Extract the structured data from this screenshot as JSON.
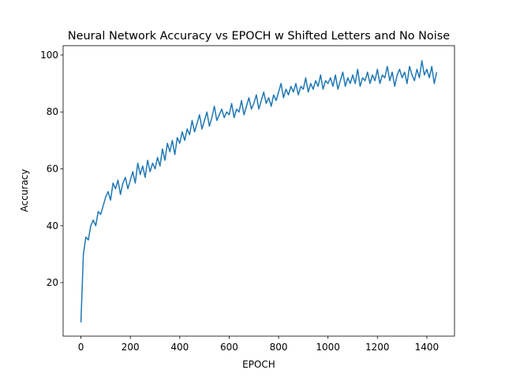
{
  "chart_data": {
    "type": "line",
    "title": "Neural Network Accuracy vs EPOCH w Shifted Letters and No Noise",
    "x_label": "EPOCH",
    "y_label": "Accuracy",
    "color": "#1f77b4",
    "x": [
      0,
      10,
      20,
      30,
      40,
      50,
      60,
      70,
      80,
      90,
      100,
      110,
      120,
      130,
      140,
      150,
      160,
      170,
      180,
      190,
      200,
      210,
      220,
      230,
      240,
      250,
      260,
      270,
      280,
      290,
      300,
      310,
      320,
      330,
      340,
      350,
      360,
      370,
      380,
      390,
      400,
      410,
      420,
      430,
      440,
      450,
      460,
      470,
      480,
      490,
      500,
      510,
      520,
      530,
      540,
      550,
      560,
      570,
      580,
      590,
      600,
      610,
      620,
      630,
      640,
      650,
      660,
      670,
      680,
      690,
      700,
      710,
      720,
      730,
      740,
      750,
      760,
      770,
      780,
      790,
      800,
      810,
      820,
      830,
      840,
      850,
      860,
      870,
      880,
      890,
      900,
      910,
      920,
      930,
      940,
      950,
      960,
      970,
      980,
      990,
      1000,
      1010,
      1020,
      1030,
      1040,
      1050,
      1060,
      1070,
      1080,
      1090,
      1100,
      1110,
      1120,
      1130,
      1140,
      1150,
      1160,
      1170,
      1180,
      1190,
      1200,
      1210,
      1220,
      1230,
      1240,
      1250,
      1260,
      1270,
      1280,
      1290,
      1300,
      1310,
      1320,
      1330,
      1340,
      1350,
      1360,
      1370,
      1380,
      1390,
      1400,
      1410,
      1420,
      1430,
      1440
    ],
    "values": [
      6,
      30,
      36,
      35,
      40,
      42,
      40,
      45,
      44,
      47,
      50,
      52,
      49,
      55,
      53,
      56,
      51,
      55,
      57,
      53,
      56,
      59,
      55,
      62,
      58,
      61,
      57,
      63,
      59,
      62,
      60,
      64,
      61,
      67,
      63,
      69,
      66,
      70,
      65,
      71,
      69,
      73,
      70,
      74,
      72,
      77,
      73,
      76,
      79,
      74,
      77,
      80,
      75,
      78,
      82,
      77,
      79,
      81,
      78,
      80,
      79,
      83,
      78,
      81,
      80,
      84,
      79,
      82,
      85,
      81,
      83,
      86,
      81,
      84,
      87,
      83,
      85,
      82,
      86,
      84,
      87,
      90,
      85,
      88,
      86,
      89,
      87,
      90,
      86,
      89,
      88,
      92,
      87,
      90,
      88,
      91,
      89,
      93,
      88,
      91,
      90,
      92,
      89,
      93,
      88,
      91,
      94,
      89,
      92,
      90,
      93,
      90,
      95,
      89,
      92,
      91,
      94,
      90,
      93,
      91,
      95,
      90,
      93,
      92,
      96,
      91,
      94,
      89,
      93,
      95,
      92,
      94,
      90,
      96,
      93,
      91,
      95,
      92,
      98,
      93,
      95,
      92,
      96,
      90,
      94
    ],
    "xlim": [
      -72,
      1512
    ],
    "ylim": [
      1.2,
      103.3
    ],
    "xticks": [
      0,
      200,
      400,
      600,
      800,
      1000,
      1200,
      1400
    ],
    "yticks": [
      20,
      40,
      60,
      80,
      100
    ]
  }
}
